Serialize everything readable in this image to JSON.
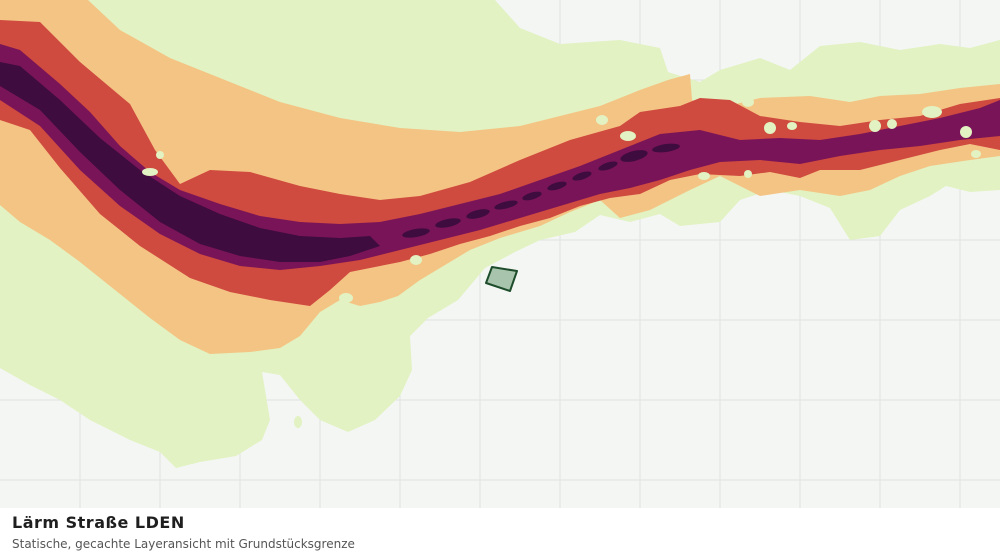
{
  "map": {
    "title": "Lärm Straße LDEN",
    "subtitle": "Statische, gecachte Layeransicht mit Grundstücksgrenze",
    "colors": {
      "background": "#f4f6f4",
      "grid": "#dfe3df",
      "zone_1": "#e2f2c2",
      "zone_2": "#f4c484",
      "zone_3": "#cf4a3f",
      "zone_4": "#7a1458",
      "zone_5": "#3f0c3f",
      "parcel_fill": "#a9c4ad",
      "parcel_stroke": "#1e4d2b"
    }
  }
}
